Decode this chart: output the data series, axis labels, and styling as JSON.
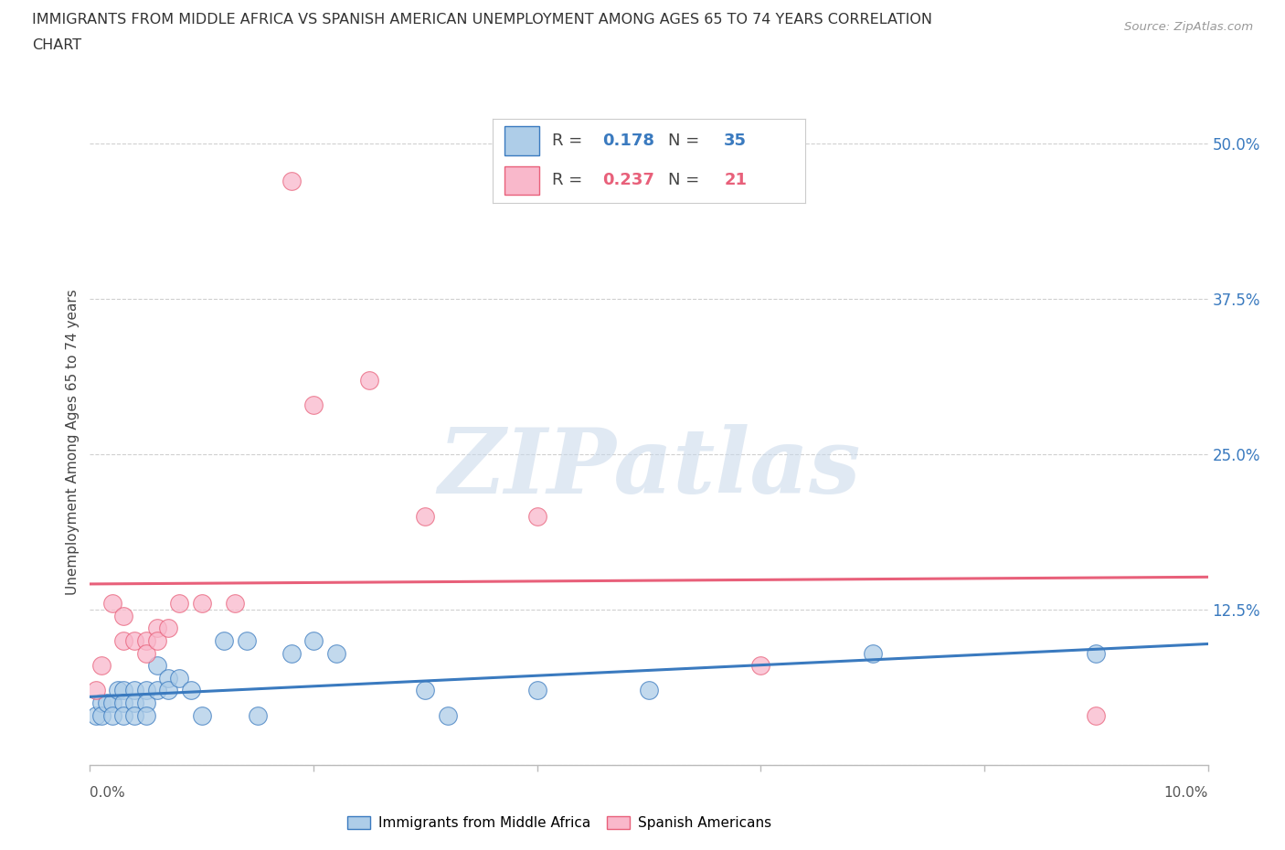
{
  "title_line1": "IMMIGRANTS FROM MIDDLE AFRICA VS SPANISH AMERICAN UNEMPLOYMENT AMONG AGES 65 TO 74 YEARS CORRELATION",
  "title_line2": "CHART",
  "source": "Source: ZipAtlas.com",
  "ylabel": "Unemployment Among Ages 65 to 74 years",
  "xlim": [
    0.0,
    0.1
  ],
  "ylim": [
    0.0,
    0.52
  ],
  "x_ticks": [
    0.0,
    0.02,
    0.04,
    0.06,
    0.08,
    0.1
  ],
  "y_ticks": [
    0.0,
    0.125,
    0.25,
    0.375,
    0.5
  ],
  "y_tick_labels": [
    "",
    "12.5%",
    "25.0%",
    "37.5%",
    "50.0%"
  ],
  "grid_color": "#d0d0d0",
  "background_color": "#ffffff",
  "blue_fill": "#aecde8",
  "pink_fill": "#f9b8cb",
  "blue_edge": "#3a7abf",
  "pink_edge": "#e8607a",
  "blue_line": "#3a7abf",
  "pink_line": "#e8607a",
  "blue_text": "#3a7abf",
  "pink_text": "#e8607a",
  "r_blue": "0.178",
  "n_blue": "35",
  "r_pink": "0.237",
  "n_pink": "21",
  "legend_label_blue": "Immigrants from Middle Africa",
  "legend_label_pink": "Spanish Americans",
  "watermark": "ZIPatlas",
  "blue_scatter_x": [
    0.0005,
    0.001,
    0.001,
    0.0015,
    0.002,
    0.002,
    0.0025,
    0.003,
    0.003,
    0.003,
    0.004,
    0.004,
    0.004,
    0.005,
    0.005,
    0.005,
    0.006,
    0.006,
    0.007,
    0.007,
    0.008,
    0.009,
    0.01,
    0.012,
    0.014,
    0.015,
    0.018,
    0.02,
    0.022,
    0.03,
    0.032,
    0.04,
    0.05,
    0.07,
    0.09
  ],
  "blue_scatter_y": [
    0.04,
    0.05,
    0.04,
    0.05,
    0.05,
    0.04,
    0.06,
    0.06,
    0.05,
    0.04,
    0.06,
    0.05,
    0.04,
    0.06,
    0.05,
    0.04,
    0.08,
    0.06,
    0.07,
    0.06,
    0.07,
    0.06,
    0.04,
    0.1,
    0.1,
    0.04,
    0.09,
    0.1,
    0.09,
    0.06,
    0.04,
    0.06,
    0.06,
    0.09,
    0.09
  ],
  "pink_scatter_x": [
    0.0005,
    0.001,
    0.002,
    0.003,
    0.003,
    0.004,
    0.005,
    0.005,
    0.006,
    0.006,
    0.007,
    0.008,
    0.01,
    0.013,
    0.018,
    0.02,
    0.025,
    0.03,
    0.04,
    0.06,
    0.09
  ],
  "pink_scatter_y": [
    0.06,
    0.08,
    0.13,
    0.12,
    0.1,
    0.1,
    0.1,
    0.09,
    0.11,
    0.1,
    0.11,
    0.13,
    0.13,
    0.13,
    0.47,
    0.29,
    0.31,
    0.2,
    0.2,
    0.08,
    0.04
  ]
}
